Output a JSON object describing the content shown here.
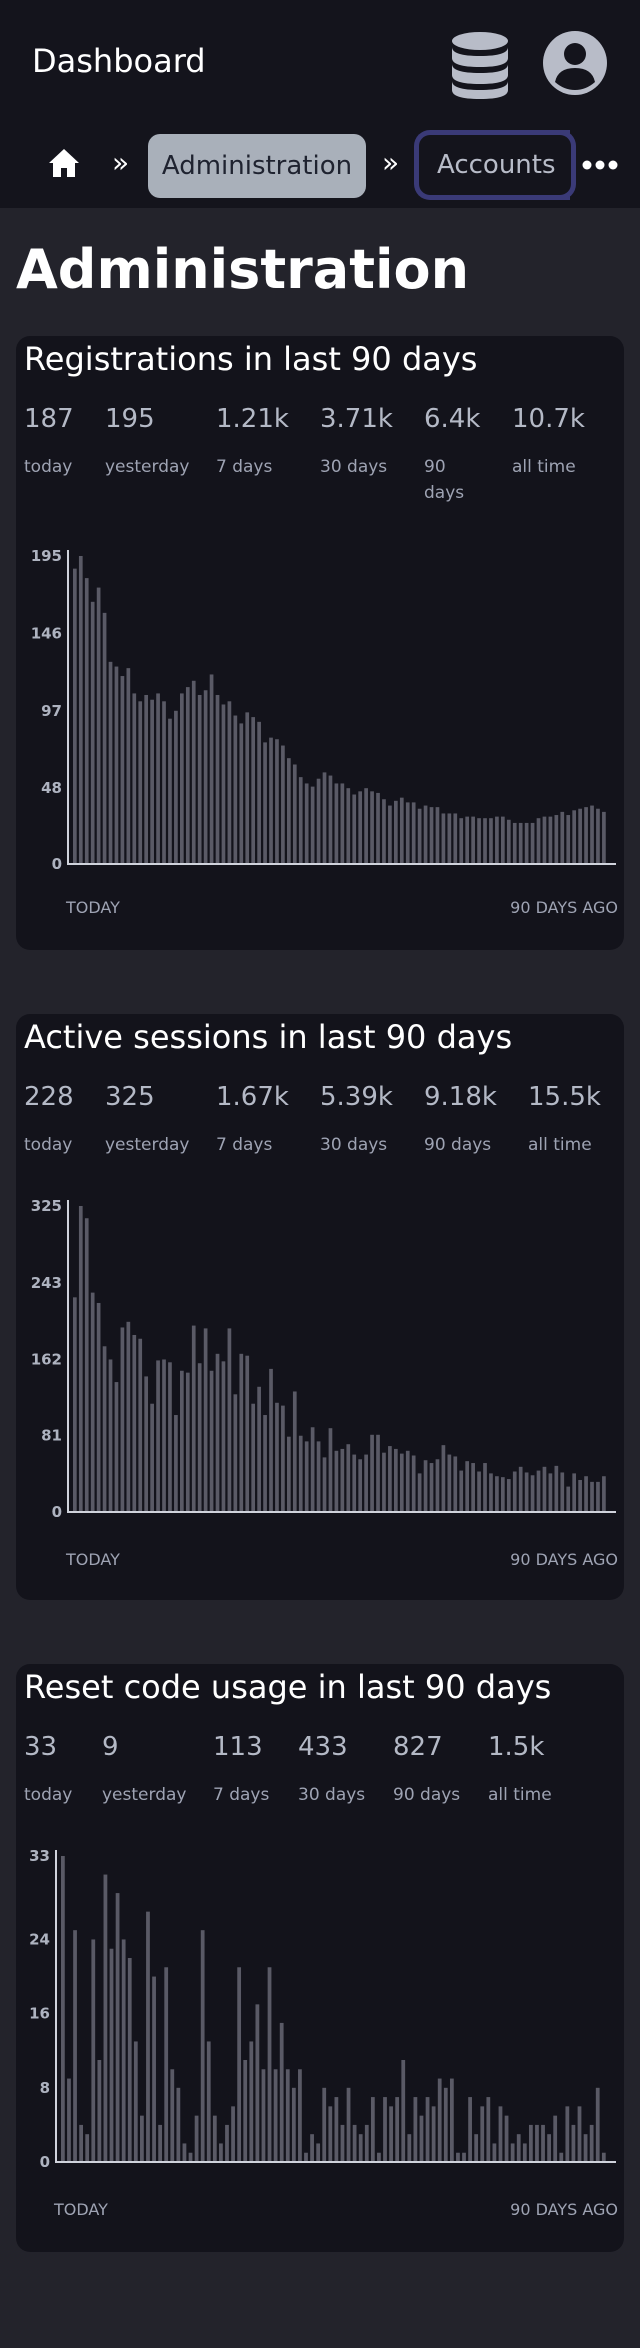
{
  "header": {
    "title": "Dashboard",
    "icons": {
      "database": "database-icon",
      "account": "user-circle-icon"
    }
  },
  "breadcrumb": {
    "home_icon": "home-icon",
    "separator": "»",
    "items": [
      {
        "label": "Administration",
        "state": "selected"
      },
      {
        "label": "Accounts",
        "state": "focused"
      }
    ],
    "more_icon": "more-horizontal-icon"
  },
  "page": {
    "title": "Administration"
  },
  "colors": {
    "background": "#23232b",
    "card": "#13131b",
    "bar": "#5a5a66",
    "crumb_selected": "#a9b0ba",
    "focus_ring": "#3a3a77"
  },
  "cards": [
    {
      "title": "Registrations in last 90 days",
      "stats": [
        {
          "value": "187",
          "label": "today"
        },
        {
          "value": "195",
          "label": "yesterday"
        },
        {
          "value": "1.21k",
          "label": "7 days"
        },
        {
          "value": "3.71k",
          "label": "30 days"
        },
        {
          "value": "6.4k",
          "label": "90 days"
        },
        {
          "value": "10.7k",
          "label": "all time"
        }
      ],
      "x_left": "TODAY",
      "x_right": "90 DAYS AGO"
    },
    {
      "title": "Active sessions in last 90 days",
      "stats": [
        {
          "value": "228",
          "label": "today"
        },
        {
          "value": "325",
          "label": "yesterday"
        },
        {
          "value": "1.67k",
          "label": "7 days"
        },
        {
          "value": "5.39k",
          "label": "30 days"
        },
        {
          "value": "9.18k",
          "label": "90 days"
        },
        {
          "value": "15.5k",
          "label": "all time"
        }
      ],
      "x_left": "TODAY",
      "x_right": "90 DAYS AGO"
    },
    {
      "title": "Reset code usage in last 90 days",
      "stats": [
        {
          "value": "33",
          "label": "today"
        },
        {
          "value": "9",
          "label": "yesterday"
        },
        {
          "value": "113",
          "label": "7 days"
        },
        {
          "value": "433",
          "label": "30 days"
        },
        {
          "value": "827",
          "label": "90 days"
        },
        {
          "value": "1.5k",
          "label": "all time"
        }
      ],
      "x_left": "TODAY",
      "x_right": "90 DAYS AGO"
    }
  ],
  "chart_data": [
    {
      "type": "bar",
      "ylim": [
        0,
        195
      ],
      "yticks": [
        0,
        48,
        97,
        146,
        195
      ],
      "x_direction": "today to 90 days ago",
      "values": [
        187,
        195,
        181,
        166,
        175,
        159,
        128,
        125,
        119,
        124,
        108,
        103,
        107,
        104,
        108,
        103,
        92,
        97,
        108,
        112,
        116,
        107,
        110,
        120,
        107,
        101,
        103,
        94,
        89,
        96,
        93,
        90,
        77,
        80,
        79,
        75,
        67,
        63,
        55,
        51,
        49,
        54,
        58,
        56,
        51,
        51,
        48,
        44,
        46,
        48,
        46,
        45,
        41,
        37,
        40,
        42,
        39,
        39,
        35,
        37,
        36,
        36,
        32,
        32,
        32,
        29,
        30,
        30,
        29,
        29,
        29,
        30,
        30,
        28,
        26,
        26,
        26,
        26,
        29,
        30,
        30,
        31,
        33,
        31,
        34,
        35,
        36,
        37,
        35,
        33
      ]
    },
    {
      "type": "bar",
      "ylim": [
        0,
        325
      ],
      "yticks": [
        0,
        81,
        162,
        243,
        325
      ],
      "x_direction": "today to 90 days ago",
      "values": [
        228,
        325,
        312,
        233,
        222,
        176,
        162,
        138,
        196,
        202,
        188,
        184,
        144,
        115,
        161,
        162,
        159,
        103,
        150,
        148,
        198,
        158,
        195,
        150,
        168,
        160,
        195,
        125,
        168,
        166,
        115,
        133,
        103,
        152,
        116,
        113,
        80,
        128,
        81,
        75,
        90,
        75,
        58,
        89,
        65,
        67,
        72,
        61,
        56,
        61,
        82,
        82,
        63,
        70,
        67,
        62,
        65,
        60,
        41,
        55,
        52,
        56,
        71,
        61,
        59,
        44,
        54,
        52,
        43,
        52,
        41,
        38,
        37,
        35,
        43,
        48,
        42,
        39,
        44,
        48,
        41,
        49,
        42,
        27,
        41,
        34,
        38,
        32,
        32,
        38
      ]
    },
    {
      "type": "bar",
      "ylim": [
        0,
        33
      ],
      "yticks": [
        0,
        8,
        16,
        24,
        33
      ],
      "x_direction": "today to 90 days ago",
      "values": [
        33,
        9,
        25,
        4,
        3,
        24,
        11,
        31,
        23,
        29,
        24,
        22,
        13,
        5,
        27,
        20,
        4,
        21,
        10,
        8,
        2,
        1,
        5,
        25,
        13,
        5,
        2,
        4,
        6,
        21,
        11,
        13,
        17,
        10,
        21,
        10,
        15,
        10,
        8,
        10,
        1,
        3,
        2,
        8,
        6,
        7,
        4,
        8,
        4,
        3,
        4,
        7,
        1,
        7,
        6,
        7,
        11,
        3,
        7,
        5,
        7,
        6,
        9,
        8,
        9,
        1,
        1,
        7,
        3,
        6,
        7,
        2,
        6,
        5,
        2,
        3,
        2,
        4,
        4,
        4,
        3,
        5,
        1,
        6,
        4,
        6,
        3,
        4,
        8,
        1
      ]
    }
  ]
}
